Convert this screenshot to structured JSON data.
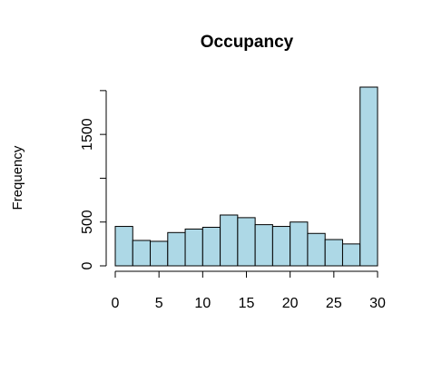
{
  "chart_data": {
    "type": "bar",
    "title": "Occupancy",
    "xlabel": "",
    "ylabel": "Frequency",
    "bin_edges": [
      0,
      2,
      4,
      6,
      8,
      10,
      12,
      14,
      16,
      18,
      20,
      22,
      24,
      26,
      28,
      30
    ],
    "values": [
      450,
      290,
      280,
      380,
      420,
      440,
      580,
      550,
      470,
      450,
      500,
      370,
      300,
      250,
      2040
    ],
    "xlim": [
      0,
      30
    ],
    "ylim": [
      0,
      2040
    ],
    "x_ticks": [
      0,
      5,
      10,
      15,
      20,
      25,
      30
    ],
    "y_ticks": [
      0,
      500,
      1000,
      1500
    ],
    "y_tick_labels": [
      "0",
      "500",
      "",
      "1500"
    ],
    "grid": false,
    "colors": {
      "bar_fill": "#add8e6",
      "bar_stroke": "#000000",
      "axis": "#000000"
    }
  }
}
